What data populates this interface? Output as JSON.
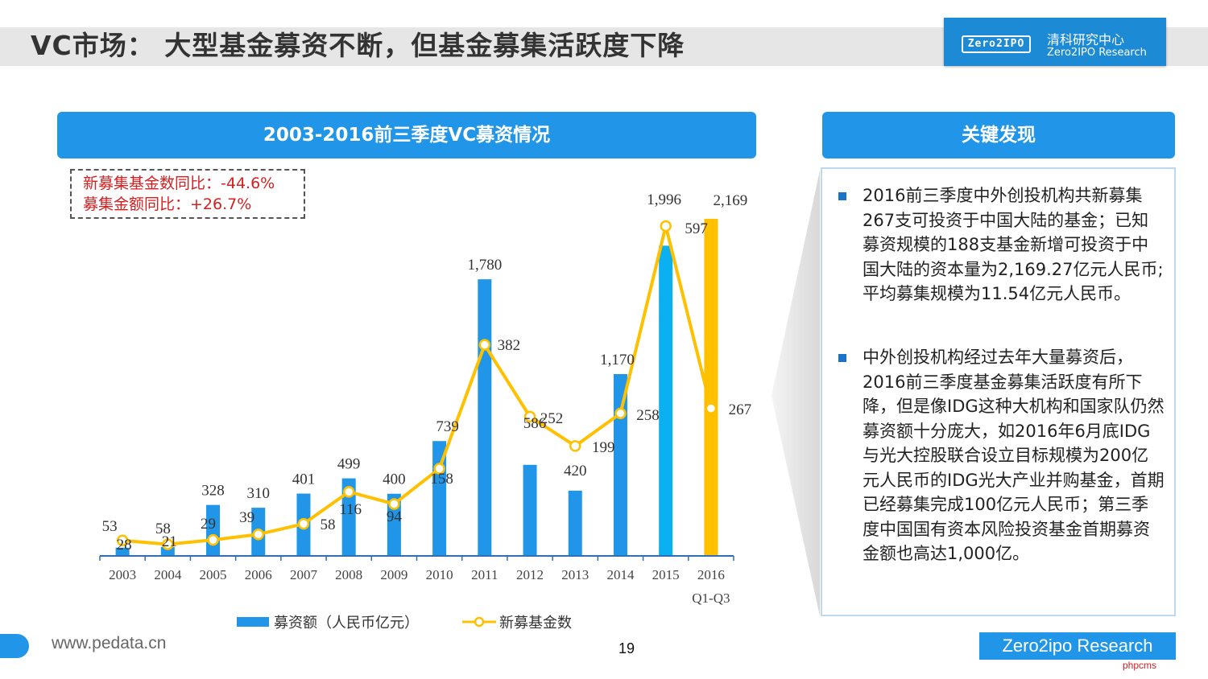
{
  "header": {
    "title": "VC市场： 大型基金募资不断，但基金募集活跃度下降",
    "logo_badge": "Zero2IPO",
    "logo_cn": "清科研究中心",
    "logo_en": "Zero2IPO Research"
  },
  "chart_panel": {
    "title": "2003-2016前三季度VC募资情况",
    "yoy_funds": "新募集基金数同比：-44.6%",
    "yoy_amount": "募集金额同比：+26.7%"
  },
  "chart_data": {
    "type": "bar+line",
    "categories": [
      "2003",
      "2004",
      "2005",
      "2006",
      "2007",
      "2008",
      "2009",
      "2010",
      "2011",
      "2012",
      "2013",
      "2014",
      "2015",
      "2016\nQ1-Q3"
    ],
    "series": [
      {
        "name": "募资额（人民币亿元）",
        "type": "bar",
        "values": [
          53,
          58,
          328,
          310,
          401,
          499,
          400,
          739,
          1780,
          586,
          420,
          1170,
          1996,
          2169
        ],
        "labels": [
          "53",
          "58",
          "328",
          "310",
          "401",
          "499",
          "400",
          "739",
          "1,780",
          "586",
          "420",
          "1,170",
          "1,996",
          "2,169"
        ],
        "color": "#2196e8",
        "highlight_color": "#0ab0f0",
        "last_color": "#ffc000"
      },
      {
        "name": "新募基金数",
        "type": "line",
        "values": [
          28,
          21,
          29,
          39,
          58,
          116,
          94,
          158,
          382,
          252,
          199,
          258,
          597,
          267
        ],
        "labels": [
          "28",
          "21",
          "29",
          "39",
          "58",
          "116",
          "94",
          "158",
          "382",
          "252",
          "199",
          "258",
          "597",
          "267"
        ],
        "color": "#ffc000"
      }
    ],
    "legend_position": "bottom"
  },
  "key_findings": {
    "title": "关键发现",
    "items": [
      "2016前三季度中外创投机构共新募集267支可投资于中国大陆的基金；已知募资规模的188支基金新增可投资于中国大陆的资本量为2,169.27亿元人民币; 平均募集规模为11.54亿元人民币。",
      "中外创投机构经过去年大量募资后，2016前三季度基金募集活跃度有所下降，但是像IDG这种大机构和国家队仍然募资额十分庞大，如2016年6月底IDG与光大控股联合设立目标规模为200亿元人民币的IDG光大产业并购基金，首期已经募集完成100亿元人民币；第三季度中国国有资本风险投资基金首期募资金额也高达1,000亿。"
    ]
  },
  "footer": {
    "url": "www.pedata.cn",
    "page_number": "19",
    "brand": "Zero2ipo Research",
    "watermark": "phpcms"
  }
}
